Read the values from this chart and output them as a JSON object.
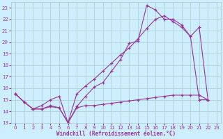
{
  "xlabel": "Windchill (Refroidissement éolien,°C)",
  "bg_color": "#cceeff",
  "grid_color": "#aacccc",
  "line_color": "#993399",
  "xlim": [
    -0.5,
    23.5
  ],
  "ylim": [
    13,
    23.5
  ],
  "xticks": [
    0,
    1,
    2,
    3,
    4,
    5,
    6,
    7,
    8,
    9,
    10,
    11,
    12,
    13,
    14,
    15,
    16,
    17,
    18,
    19,
    20,
    21,
    22,
    23
  ],
  "yticks": [
    13,
    14,
    15,
    16,
    17,
    18,
    19,
    20,
    21,
    22,
    23
  ],
  "line1_x": [
    0,
    1,
    2,
    3,
    4,
    5,
    6,
    7,
    8,
    9,
    10,
    11,
    12,
    13,
    14,
    15,
    16,
    17,
    18,
    19,
    20,
    21,
    22
  ],
  "line1_y": [
    15.5,
    14.8,
    14.2,
    14.2,
    14.5,
    14.3,
    13.0,
    14.4,
    15.3,
    16.1,
    16.5,
    17.5,
    18.5,
    19.9,
    20.1,
    23.2,
    22.8,
    22.0,
    22.0,
    21.5,
    20.5,
    21.3,
    15.0
  ],
  "line2_x": [
    0,
    1,
    2,
    3,
    4,
    5,
    6,
    7,
    8,
    9,
    10,
    11,
    12,
    13,
    14,
    15,
    16,
    17,
    18,
    19,
    20,
    21,
    22
  ],
  "line2_y": [
    15.5,
    14.8,
    14.2,
    14.2,
    14.4,
    14.3,
    13.0,
    14.3,
    14.5,
    14.5,
    14.6,
    14.7,
    14.8,
    14.9,
    15.0,
    15.1,
    15.2,
    15.3,
    15.4,
    15.4,
    15.4,
    15.4,
    15.0
  ],
  "line3_x": [
    0,
    1,
    2,
    3,
    4,
    5,
    6,
    7,
    8,
    9,
    10,
    11,
    12,
    13,
    14,
    15,
    16,
    17,
    18,
    19,
    20,
    21,
    22
  ],
  "line3_y": [
    15.5,
    14.8,
    14.2,
    14.5,
    15.0,
    15.3,
    13.0,
    15.5,
    16.2,
    16.8,
    17.5,
    18.2,
    18.9,
    19.5,
    20.3,
    21.2,
    22.0,
    22.3,
    21.8,
    21.3,
    20.5,
    15.0,
    15.0
  ]
}
